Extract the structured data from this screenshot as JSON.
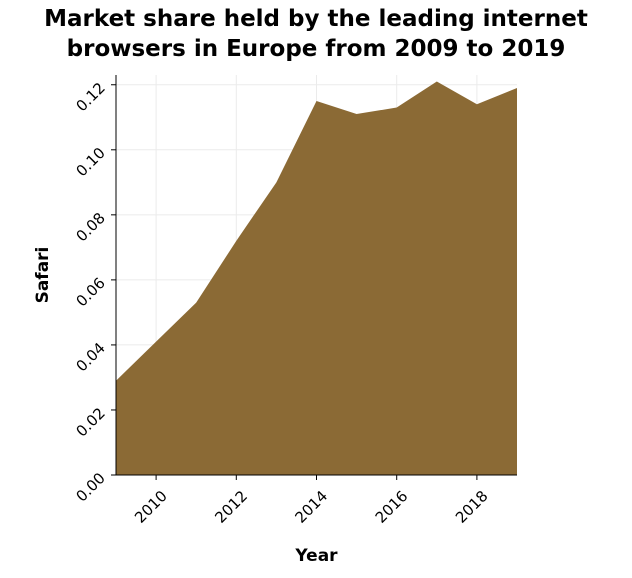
{
  "chart_data": {
    "type": "area",
    "title_lines": [
      "Market share held by the leading internet",
      "browsers in Europe from 2009 to 2019"
    ],
    "xlabel": "Year",
    "ylabel": "Safari",
    "x": [
      2009,
      2010,
      2011,
      2012,
      2013,
      2014,
      2015,
      2016,
      2017,
      2018,
      2019
    ],
    "values": [
      0.029,
      0.041,
      0.053,
      0.072,
      0.09,
      0.115,
      0.111,
      0.113,
      0.121,
      0.114,
      0.119
    ],
    "xlim": [
      2009,
      2019
    ],
    "ylim": [
      0,
      0.123
    ],
    "xticks": [
      2010,
      2012,
      2014,
      2016,
      2018
    ],
    "yticks": [
      "0.00",
      "0.02",
      "0.04",
      "0.06",
      "0.08",
      "0.10",
      "0.12"
    ],
    "grid": true,
    "colors": {
      "fill": "#8b6a35",
      "grid": "#ebebeb"
    }
  }
}
